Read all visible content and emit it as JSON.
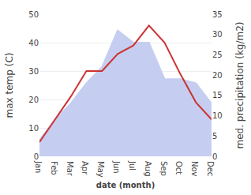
{
  "chart_data": {
    "type": "line",
    "xlabel": "date (month)",
    "ylabel": "max temp (C)",
    "y2label": "med. precipitation (kg/m2)",
    "categories": [
      "Jan",
      "Feb",
      "Mar",
      "Apr",
      "May",
      "Jun",
      "Jul",
      "Aug",
      "Sep",
      "Oct",
      "Nov",
      "Dec"
    ],
    "series": [
      {
        "type": "area",
        "axis": "y2",
        "color": "#c5cef0",
        "values": [
          4,
          9,
          13,
          18,
          22,
          31,
          28,
          28,
          19,
          19,
          18,
          13
        ]
      },
      {
        "type": "line",
        "color": "#cc3333",
        "values": [
          5,
          13,
          21,
          30,
          30,
          36,
          39,
          46,
          40,
          29,
          19,
          13
        ]
      }
    ],
    "ylim": [
      0,
      50
    ],
    "yticks": [
      0,
      10,
      20,
      30,
      40,
      50
    ],
    "y2lim": [
      0,
      35
    ],
    "y2ticks": [
      0,
      5,
      10,
      15,
      20,
      25,
      30,
      35
    ],
    "grid": true
  }
}
